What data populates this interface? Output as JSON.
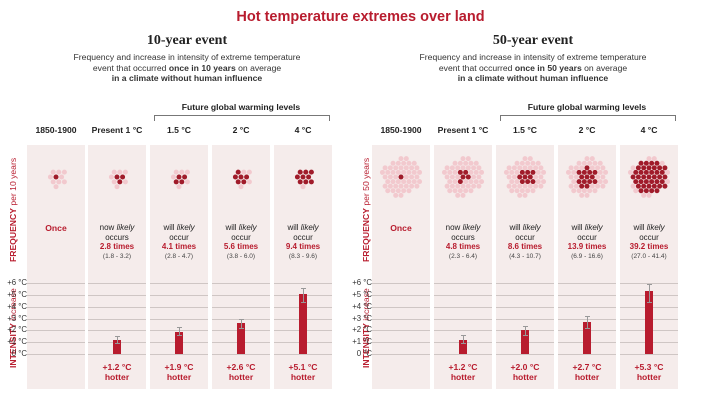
{
  "title": "Hot temperature extremes over land",
  "colors": {
    "accent": "#b81c2e",
    "dot_light": "#f2c9ce",
    "dot_dark": "#a01b2a",
    "panel_bg": "#f5eceb"
  },
  "panels": [
    {
      "title": "10-year event",
      "subtitle_line1": "Frequency and increase in intensity of extreme temperature",
      "subtitle_line2_a": "event that occurred ",
      "subtitle_line2_b": "once in 10 years",
      "subtitle_line2_c": " on average",
      "subtitle_line3": "in a climate without human influence",
      "future_label": "Future global warming levels",
      "freq_axis_a": "FREQUENCY",
      "freq_axis_b": " per 10 years",
      "int_axis_a": "INTENSITY",
      "int_axis_b": " increase",
      "columns": [
        {
          "header": "1850-1900",
          "once": "Once"
        },
        {
          "header": "Present 1 °C",
          "l1a": "now ",
          "l1b": "likely",
          "l2": "occurs",
          "times": "2.8 times",
          "range": "(1.8 - 3.2)",
          "intensity": "+1.2 °C",
          "hotter": "hotter"
        },
        {
          "header": "1.5 °C",
          "l1a": "will ",
          "l1b": "likely",
          "l2": "occur",
          "times": "4.1 times",
          "range": "(2.8 - 4.7)",
          "intensity": "+1.9 °C",
          "hotter": "hotter"
        },
        {
          "header": "2 °C",
          "l1a": "will ",
          "l1b": "likely",
          "l2": "occur",
          "times": "5.6 times",
          "range": "(3.8 - 6.0)",
          "intensity": "+2.6 °C",
          "hotter": "hotter"
        },
        {
          "header": "4 °C",
          "l1a": "will ",
          "l1b": "likely",
          "l2": "occur",
          "times": "9.4 times",
          "range": "(8.3 - 9.6)",
          "intensity": "+5.1 °C",
          "hotter": "hotter"
        }
      ]
    },
    {
      "title": "50-year event",
      "subtitle_line1": "Frequency and increase in intensity of extreme temperature",
      "subtitle_line2_a": "event that occurred ",
      "subtitle_line2_b": "once in 50 years",
      "subtitle_line2_c": " on average",
      "subtitle_line3": "in a climate without human influence",
      "future_label": "Future global warming levels",
      "freq_axis_a": "FREQUENCY",
      "freq_axis_b": " per 50 years",
      "int_axis_a": "INTENSITY",
      "int_axis_b": " increase",
      "columns": [
        {
          "header": "1850-1900",
          "once": "Once"
        },
        {
          "header": "Present 1 °C",
          "l1a": "now ",
          "l1b": "likely",
          "l2": "occurs",
          "times": "4.8 times",
          "range": "(2.3 - 6.4)",
          "intensity": "+1.2 °C",
          "hotter": "hotter"
        },
        {
          "header": "1.5 °C",
          "l1a": "will ",
          "l1b": "likely",
          "l2": "occur",
          "times": "8.6 times",
          "range": "(4.3 - 10.7)",
          "intensity": "+2.0 °C",
          "hotter": "hotter"
        },
        {
          "header": "2 °C",
          "l1a": "will ",
          "l1b": "likely",
          "l2": "occur",
          "times": "13.9 times",
          "range": "(6.9 - 16.6)",
          "intensity": "+2.7 °C",
          "hotter": "hotter"
        },
        {
          "header": "4 °C",
          "l1a": "will ",
          "l1b": "likely",
          "l2": "occur",
          "times": "39.2 times",
          "range": "(27.0 - 41.4)",
          "intensity": "+5.3 °C",
          "hotter": "hotter"
        }
      ]
    }
  ],
  "chart_data": [
    {
      "type": "bar",
      "title": "10-year event",
      "categories": [
        "1850-1900",
        "Present 1 °C",
        "1.5 °C",
        "2 °C",
        "4 °C"
      ],
      "frequency": {
        "events_total": 10,
        "values": [
          1,
          2.8,
          4.1,
          5.6,
          9.4
        ],
        "low": [
          null,
          1.8,
          2.8,
          3.8,
          8.3
        ],
        "high": [
          null,
          3.2,
          4.7,
          6.0,
          9.6
        ]
      },
      "intensity": {
        "values": [
          0,
          1.2,
          1.9,
          2.6,
          5.1
        ],
        "err_low": [
          null,
          0.9,
          1.6,
          2.2,
          4.4
        ],
        "err_high": [
          null,
          1.5,
          2.3,
          3.0,
          5.6
        ]
      },
      "ylabel": "INTENSITY increase",
      "yticks": [
        "0 °C",
        "+1 °C",
        "+2 °C",
        "+3 °C",
        "+4 °C",
        "+5 °C",
        "+6 °C"
      ],
      "ylim": [
        0,
        6
      ]
    },
    {
      "type": "bar",
      "title": "50-year event",
      "categories": [
        "1850-1900",
        "Present 1 °C",
        "1.5 °C",
        "2 °C",
        "4 °C"
      ],
      "frequency": {
        "events_total": 50,
        "values": [
          1,
          4.8,
          8.6,
          13.9,
          39.2
        ],
        "low": [
          null,
          2.3,
          4.3,
          6.9,
          27.0
        ],
        "high": [
          null,
          6.4,
          10.7,
          16.6,
          41.4
        ]
      },
      "intensity": {
        "values": [
          0,
          1.2,
          2.0,
          2.7,
          5.3
        ],
        "err_low": [
          null,
          0.9,
          1.6,
          2.2,
          4.4
        ],
        "err_high": [
          null,
          1.6,
          2.4,
          3.2,
          5.9
        ]
      },
      "ylabel": "INTENSITY increase",
      "yticks": [
        "0 °C",
        "+1 °C",
        "+2 °C",
        "+3 °C",
        "+4 °C",
        "+5 °C",
        "+6 °C"
      ],
      "ylim": [
        0,
        6
      ]
    }
  ]
}
